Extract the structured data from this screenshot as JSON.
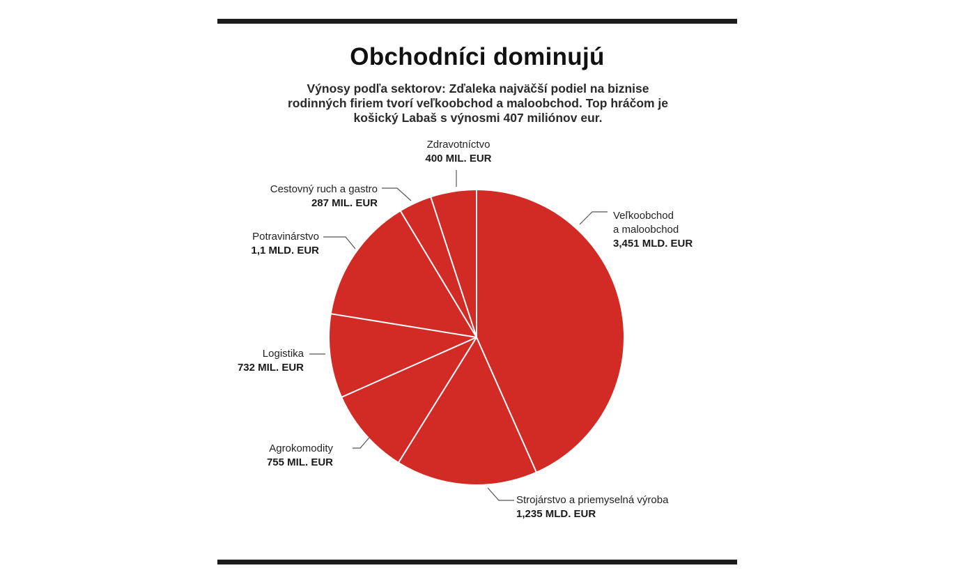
{
  "header": {
    "title": "Obchodníci dominujú",
    "subtitle": "Výnosy podľa sektorov: Zďaleka najväčší podiel na biznise rodinných firiem tvorí veľkoobchod a maloobchod. Top hráčom je košický Labaš s výnosmi 407 miliónov eur."
  },
  "colors": {
    "slice": "#d22b26",
    "separator": "#ffffff",
    "leader": "#555555",
    "rule": "#1c1c1c"
  },
  "chart_data": {
    "type": "pie",
    "title": "Obchodníci dominujú",
    "unit": "mil. EUR",
    "slices": [
      {
        "name": "Veľkoobchod a maloobchod",
        "name_lines": [
          "Veľkoobchod",
          "a maloobchod"
        ],
        "value": 3451,
        "label": "3,451 MLD. EUR"
      },
      {
        "name": "Strojárstvo a priemyselná výroba",
        "name_lines": [
          "Strojárstvo a priemyselná výroba"
        ],
        "value": 1235,
        "label": "1,235 MLD. EUR"
      },
      {
        "name": "Agrokomodity",
        "name_lines": [
          "Agrokomodity"
        ],
        "value": 755,
        "label": "755 MIL. EUR"
      },
      {
        "name": "Logistika",
        "name_lines": [
          "Logistika"
        ],
        "value": 732,
        "label": "732 MIL. EUR"
      },
      {
        "name": "Potravinárstvo",
        "name_lines": [
          "Potravinárstvo"
        ],
        "value": 1100,
        "label": "1,1 MLD. EUR"
      },
      {
        "name": "Cestovný ruch a gastro",
        "name_lines": [
          "Cestovný ruch a gastro"
        ],
        "value": 287,
        "label": "287 MIL. EUR"
      },
      {
        "name": "Zdravotníctvo",
        "name_lines": [
          "Zdravotníctvo"
        ],
        "value": 400,
        "label": "400  MIL. EUR"
      }
    ]
  }
}
